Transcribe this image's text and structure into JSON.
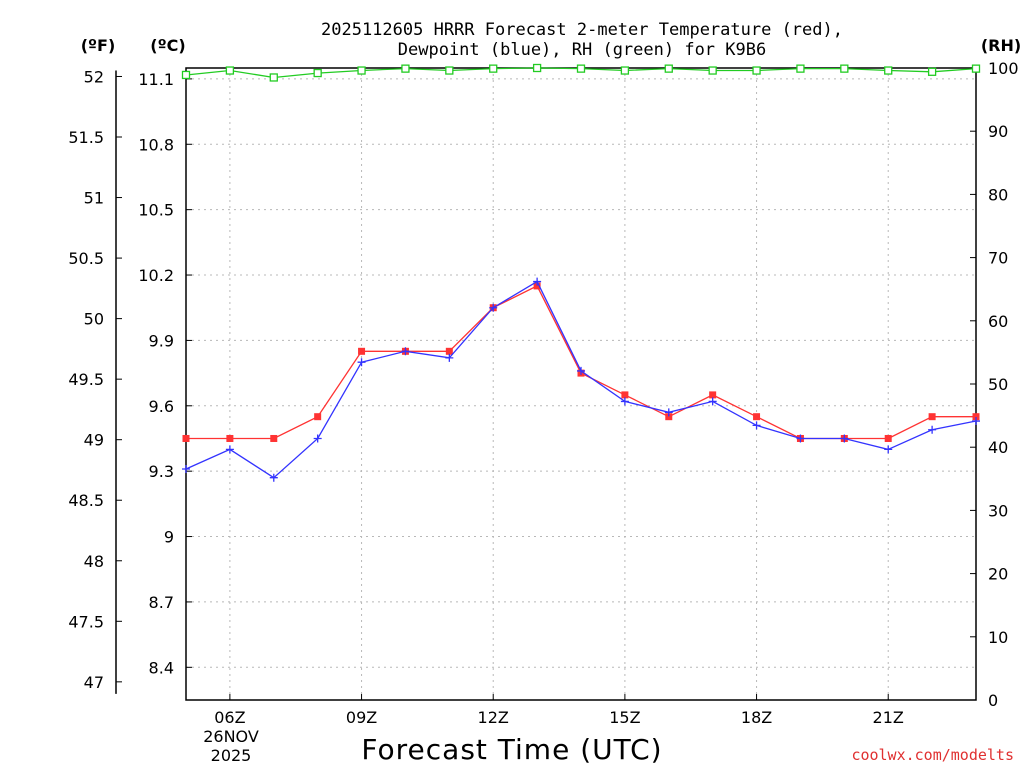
{
  "chart_data": {
    "type": "line",
    "title": "2025112605 HRRR Forecast 2-meter Temperature (red),",
    "subtitle": "Dewpoint (blue), RH (green) for K9B6",
    "xlabel": "Forecast Time (UTC)",
    "left_unit_label": "(ºF)",
    "mid_unit_label": "(ºC)",
    "right_unit_label": "(RH)",
    "credit": "coolwx.com/modelts",
    "date_labels": [
      "26NOV",
      "2025"
    ],
    "x": [
      5,
      6,
      7,
      8,
      9,
      10,
      11,
      12,
      13,
      14,
      15,
      16,
      17,
      18,
      19,
      20,
      21,
      22,
      23
    ],
    "x_ticks": [
      6,
      9,
      12,
      15,
      18,
      21
    ],
    "x_tick_labels": [
      "06Z",
      "09Z",
      "12Z",
      "15Z",
      "18Z",
      "21Z"
    ],
    "xlim": [
      5,
      23
    ],
    "ylim_c": [
      8.25,
      11.15
    ],
    "y_ticks_c": [
      8.4,
      8.7,
      9,
      9.3,
      9.6,
      9.9,
      10.2,
      10.5,
      10.8,
      11.1
    ],
    "y_tick_labels_c": [
      "8.4",
      "8.7",
      "9",
      "9.3",
      "9.6",
      "9.9",
      "10.2",
      "10.5",
      "10.8",
      "11.1"
    ],
    "y_ticks_f": [
      47,
      47.5,
      48,
      48.5,
      49,
      49.5,
      50,
      50.5,
      51,
      51.5,
      52
    ],
    "y_tick_labels_f": [
      "47",
      "47.5",
      "48",
      "48.5",
      "49",
      "49.5",
      "50",
      "50.5",
      "51",
      "51.5",
      "52"
    ],
    "ylim_rh": [
      0,
      100
    ],
    "y_ticks_rh": [
      0,
      10,
      20,
      30,
      40,
      50,
      60,
      70,
      80,
      90,
      100
    ],
    "y_tick_labels_rh": [
      "0",
      "10",
      "20",
      "30",
      "40",
      "50",
      "60",
      "70",
      "80",
      "90",
      "100"
    ],
    "grid": true,
    "series": [
      {
        "name": "Temperature",
        "color": "#ff3333",
        "marker": "square",
        "axis": "c",
        "values": [
          9.45,
          9.45,
          9.45,
          9.55,
          9.85,
          9.85,
          9.85,
          10.05,
          10.15,
          9.75,
          9.65,
          9.55,
          9.65,
          9.55,
          9.45,
          9.45,
          9.45,
          9.55,
          9.55
        ]
      },
      {
        "name": "Dewpoint",
        "color": "#3333ff",
        "marker": "plus",
        "axis": "c",
        "values": [
          9.31,
          9.4,
          9.27,
          9.45,
          9.8,
          9.85,
          9.82,
          10.05,
          10.17,
          9.76,
          9.62,
          9.57,
          9.62,
          9.51,
          9.45,
          9.45,
          9.4,
          9.49,
          9.53
        ]
      },
      {
        "name": "RH",
        "color": "#22cc22",
        "marker": "open-square",
        "axis": "rh",
        "values": [
          98.9,
          99.6,
          98.5,
          99.2,
          99.6,
          99.9,
          99.6,
          99.9,
          100,
          99.9,
          99.6,
          99.9,
          99.6,
          99.6,
          99.9,
          99.9,
          99.6,
          99.4,
          99.9
        ]
      }
    ]
  }
}
